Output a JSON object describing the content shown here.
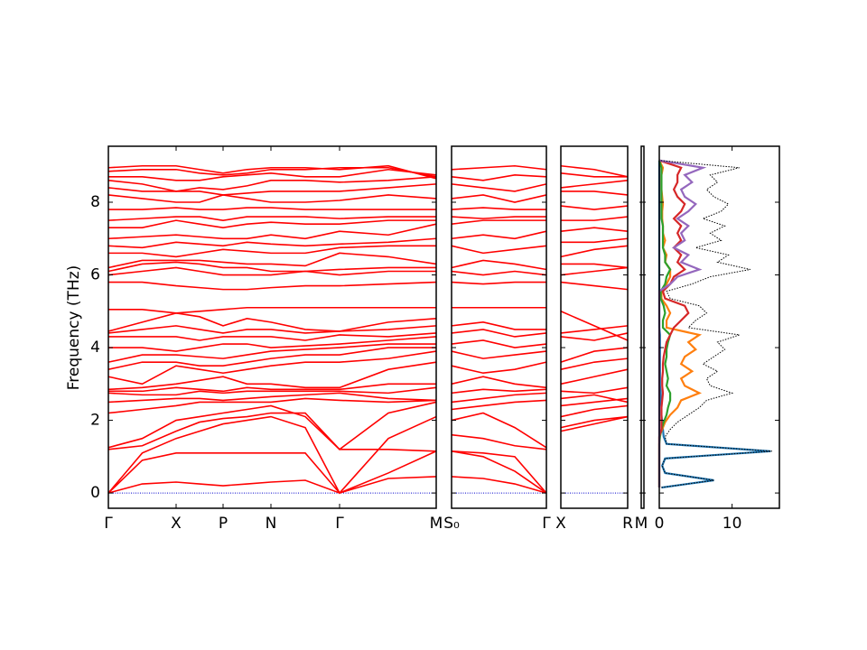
{
  "chart_data": [
    {
      "type": "line",
      "ylabel": "Frequency (THz)",
      "ytick_labels": true,
      "color": "#ff0000",
      "xlim": [
        0,
        3.63
      ],
      "ylim": [
        -0.42,
        9.54
      ],
      "yticks": [
        0,
        2,
        4,
        6,
        8
      ],
      "xticks": [
        {
          "value": 0,
          "label": "Γ"
        },
        {
          "value": 0.75,
          "label": "X"
        },
        {
          "value": 1.27,
          "label": "P"
        },
        {
          "value": 1.8,
          "label": "N"
        },
        {
          "value": 2.56,
          "label": "Γ"
        },
        {
          "value": 3.63,
          "label": "M"
        }
      ],
      "hline": 0,
      "hline_color": "#0000cc",
      "x": [
        0,
        0.375,
        0.75,
        1.01,
        1.27,
        1.535,
        1.8,
        2.18,
        2.56,
        3.1,
        3.63
      ],
      "bands": [
        [
          0,
          0.25,
          0.3,
          0.25,
          0.2,
          0.25,
          0.3,
          0.35,
          0,
          0.4,
          0.45
        ],
        [
          0,
          0.9,
          1.1,
          1.1,
          1.1,
          1.1,
          1.1,
          1.1,
          0,
          0.55,
          1.15
        ],
        [
          0,
          1.1,
          1.5,
          1.7,
          1.9,
          2.0,
          2.1,
          1.8,
          0,
          1.5,
          2.1
        ],
        [
          1.2,
          1.3,
          1.7,
          1.95,
          2.05,
          2.1,
          2.2,
          2.2,
          1.2,
          1.2,
          1.15
        ],
        [
          1.25,
          1.5,
          2.0,
          2.1,
          2.2,
          2.3,
          2.4,
          2.1,
          1.2,
          2.2,
          2.5
        ],
        [
          2.2,
          2.3,
          2.4,
          2.5,
          2.5,
          2.5,
          2.5,
          2.6,
          2.55,
          2.5,
          2.55
        ],
        [
          2.5,
          2.55,
          2.6,
          2.6,
          2.55,
          2.6,
          2.65,
          2.7,
          2.75,
          2.6,
          2.55
        ],
        [
          2.75,
          2.7,
          2.7,
          2.8,
          2.75,
          2.8,
          2.8,
          2.8,
          2.8,
          2.75,
          2.9
        ],
        [
          2.8,
          2.8,
          2.9,
          2.85,
          2.8,
          2.9,
          2.85,
          2.85,
          2.85,
          3.0,
          3.0
        ],
        [
          2.85,
          2.9,
          3.0,
          3.1,
          3.2,
          3.0,
          3.0,
          2.9,
          2.9,
          3.4,
          3.6
        ],
        [
          3.2,
          3.0,
          3.5,
          3.4,
          3.3,
          3.4,
          3.5,
          3.6,
          3.6,
          3.7,
          3.9
        ],
        [
          3.4,
          3.6,
          3.6,
          3.5,
          3.5,
          3.6,
          3.7,
          3.8,
          3.8,
          4.0,
          4.0
        ],
        [
          3.6,
          3.8,
          3.8,
          3.75,
          3.7,
          3.8,
          3.9,
          3.95,
          4.0,
          4.1,
          4.1
        ],
        [
          4.0,
          4.0,
          3.9,
          4.0,
          4.1,
          4.1,
          4.0,
          4.05,
          4.1,
          4.2,
          4.3
        ],
        [
          4.3,
          4.3,
          4.3,
          4.2,
          4.3,
          4.3,
          4.3,
          4.2,
          4.35,
          4.3,
          4.4
        ],
        [
          4.4,
          4.5,
          4.6,
          4.5,
          4.4,
          4.5,
          4.5,
          4.4,
          4.45,
          4.5,
          4.6
        ],
        [
          4.45,
          4.7,
          4.95,
          4.85,
          4.6,
          4.8,
          4.7,
          4.5,
          4.45,
          4.7,
          4.8
        ],
        [
          5.05,
          5.05,
          4.95,
          5.0,
          5.05,
          5.1,
          5.1,
          5.1,
          5.1,
          5.1,
          5.1
        ],
        [
          5.8,
          5.8,
          5.7,
          5.65,
          5.6,
          5.6,
          5.65,
          5.7,
          5.7,
          5.75,
          5.8
        ],
        [
          6.0,
          6.1,
          6.2,
          6.1,
          6.0,
          6.0,
          6.0,
          6.1,
          6.0,
          6.1,
          6.1
        ],
        [
          6.1,
          6.3,
          6.35,
          6.3,
          6.2,
          6.2,
          6.1,
          6.1,
          6.15,
          6.2,
          6.2
        ],
        [
          6.2,
          6.4,
          6.4,
          6.4,
          6.35,
          6.3,
          6.3,
          6.25,
          6.6,
          6.5,
          6.3
        ],
        [
          6.6,
          6.6,
          6.5,
          6.6,
          6.7,
          6.65,
          6.6,
          6.6,
          6.75,
          6.8,
          6.8
        ],
        [
          6.8,
          6.75,
          6.9,
          6.85,
          6.8,
          6.9,
          6.85,
          6.8,
          6.85,
          6.9,
          7.0
        ],
        [
          7.0,
          7.05,
          7.1,
          7.05,
          7.0,
          7.0,
          7.1,
          7.0,
          7.2,
          7.1,
          7.4
        ],
        [
          7.3,
          7.3,
          7.5,
          7.4,
          7.3,
          7.4,
          7.45,
          7.4,
          7.4,
          7.5,
          7.5
        ],
        [
          7.5,
          7.55,
          7.6,
          7.6,
          7.5,
          7.6,
          7.6,
          7.6,
          7.55,
          7.6,
          7.6
        ],
        [
          7.8,
          7.8,
          7.85,
          7.8,
          7.8,
          7.85,
          7.85,
          7.8,
          7.8,
          7.8,
          7.8
        ],
        [
          8.2,
          8.1,
          8.0,
          8.0,
          8.2,
          8.1,
          8.0,
          8.0,
          8.05,
          8.2,
          8.1
        ],
        [
          8.4,
          8.3,
          8.3,
          8.3,
          8.2,
          8.25,
          8.3,
          8.3,
          8.3,
          8.4,
          8.5
        ],
        [
          8.6,
          8.5,
          8.3,
          8.4,
          8.35,
          8.45,
          8.6,
          8.6,
          8.55,
          8.6,
          8.7
        ],
        [
          8.7,
          8.7,
          8.6,
          8.6,
          8.7,
          8.75,
          8.8,
          8.7,
          8.7,
          8.9,
          8.75
        ],
        [
          8.85,
          8.9,
          8.9,
          8.8,
          8.75,
          8.8,
          8.9,
          8.9,
          8.95,
          8.95,
          8.7
        ],
        [
          8.95,
          9.0,
          9.0,
          8.9,
          8.8,
          8.9,
          8.95,
          8.95,
          8.9,
          9.0,
          8.65
        ]
      ]
    },
    {
      "type": "line",
      "ytick_labels": false,
      "color": "#ff0000",
      "xlim": [
        0,
        1.05
      ],
      "ylim": [
        -0.42,
        9.54
      ],
      "yticks": [
        0,
        2,
        4,
        6,
        8
      ],
      "xticks": [
        {
          "value": 0,
          "label": "S₀"
        },
        {
          "value": 1.05,
          "label": "Γ"
        }
      ],
      "hline": 0,
      "hline_color": "#0000cc",
      "x": [
        0,
        0.35,
        0.7,
        1.05
      ],
      "bands": [
        [
          0.45,
          0.4,
          0.25,
          0
        ],
        [
          1.15,
          1.0,
          0.6,
          0
        ],
        [
          1.15,
          1.1,
          1.0,
          0
        ],
        [
          1.6,
          1.5,
          1.3,
          1.2
        ],
        [
          2.0,
          2.2,
          1.8,
          1.25
        ],
        [
          2.3,
          2.4,
          2.5,
          2.55
        ],
        [
          2.5,
          2.6,
          2.7,
          2.75
        ],
        [
          2.75,
          2.85,
          2.8,
          2.85
        ],
        [
          3.0,
          3.2,
          3.0,
          2.9
        ],
        [
          3.5,
          3.3,
          3.4,
          3.6
        ],
        [
          3.9,
          3.7,
          3.8,
          3.9
        ],
        [
          4.1,
          4.2,
          4.0,
          4.1
        ],
        [
          4.4,
          4.5,
          4.3,
          4.4
        ],
        [
          4.6,
          4.7,
          4.5,
          4.5
        ],
        [
          5.1,
          5.1,
          5.1,
          5.1
        ],
        [
          5.8,
          5.75,
          5.8,
          5.8
        ],
        [
          6.1,
          6.0,
          6.1,
          6.0
        ],
        [
          6.2,
          6.4,
          6.3,
          6.15
        ],
        [
          6.8,
          6.6,
          6.7,
          6.8
        ],
        [
          7.0,
          7.1,
          7.0,
          7.2
        ],
        [
          7.4,
          7.5,
          7.5,
          7.5
        ],
        [
          7.6,
          7.55,
          7.6,
          7.6
        ],
        [
          7.8,
          7.85,
          7.8,
          7.8
        ],
        [
          8.1,
          8.2,
          8.0,
          8.2
        ],
        [
          8.5,
          8.4,
          8.3,
          8.5
        ],
        [
          8.7,
          8.6,
          8.75,
          8.7
        ],
        [
          8.9,
          8.95,
          9.0,
          8.9
        ]
      ]
    },
    {
      "type": "line",
      "ytick_labels": false,
      "color": "#ff0000",
      "xlim": [
        0,
        0.74
      ],
      "ylim": [
        -0.42,
        9.54
      ],
      "yticks": [
        0,
        2,
        4,
        6,
        8
      ],
      "xticks": [
        {
          "value": 0,
          "label": "X"
        },
        {
          "value": 0.74,
          "label": "R"
        }
      ],
      "hline": 0,
      "hline_color": "#0000cc",
      "x": [
        0,
        0.37,
        0.74
      ],
      "bands": [
        [
          1.7,
          1.9,
          2.1
        ],
        [
          1.8,
          2.0,
          2.1
        ],
        [
          2.1,
          2.3,
          2.4
        ],
        [
          2.4,
          2.5,
          2.6
        ],
        [
          2.6,
          2.7,
          2.5
        ],
        [
          2.8,
          2.75,
          2.9
        ],
        [
          3.0,
          3.2,
          3.4
        ],
        [
          3.4,
          3.6,
          3.7
        ],
        [
          3.6,
          3.9,
          4.0
        ],
        [
          4.3,
          4.2,
          4.4
        ],
        [
          4.4,
          4.5,
          4.6
        ],
        [
          5.0,
          4.6,
          4.2
        ],
        [
          5.8,
          5.7,
          5.6
        ],
        [
          6.0,
          6.1,
          6.2
        ],
        [
          6.3,
          6.3,
          6.2
        ],
        [
          6.5,
          6.7,
          6.8
        ],
        [
          6.9,
          6.9,
          7.0
        ],
        [
          7.2,
          7.3,
          7.2
        ],
        [
          7.5,
          7.5,
          7.6
        ],
        [
          7.9,
          7.8,
          7.9
        ],
        [
          8.3,
          8.3,
          8.2
        ],
        [
          8.4,
          8.5,
          8.6
        ],
        [
          8.8,
          8.7,
          8.7
        ],
        [
          9.0,
          8.9,
          8.7
        ]
      ]
    },
    {
      "type": "line",
      "ytick_labels": false,
      "xlim": [
        0,
        0.03
      ],
      "ylim": [
        -0.42,
        9.54
      ],
      "yticks": [
        0,
        2,
        4,
        6,
        8
      ],
      "xticks": [
        {
          "value": 0,
          "label": "M"
        }
      ]
    },
    {
      "type": "dos",
      "ytick_labels": false,
      "orientation": "horizontal",
      "xlim": [
        0,
        16.5
      ],
      "ylim": [
        -0.42,
        9.54
      ],
      "xticks": [
        0,
        10
      ],
      "yticks": [
        0,
        2,
        4,
        6,
        8
      ],
      "frequencies": [
        0.15,
        0.35,
        0.55,
        0.75,
        0.95,
        1.15,
        1.35,
        1.55,
        1.75,
        1.95,
        2.15,
        2.35,
        2.55,
        2.75,
        2.95,
        3.15,
        3.35,
        3.55,
        3.75,
        3.95,
        4.15,
        4.35,
        4.55,
        4.75,
        4.95,
        5.15,
        5.35,
        5.55,
        5.75,
        5.95,
        6.15,
        6.35,
        6.55,
        6.75,
        6.95,
        7.15,
        7.35,
        7.55,
        7.75,
        7.95,
        8.15,
        8.35,
        8.55,
        8.75,
        8.95,
        9.15
      ],
      "series": [
        {
          "color": "#1f77b4",
          "style": "solid",
          "values": [
            0.3,
            7.5,
            0.8,
            0.4,
            0.8,
            15.3,
            1.0,
            0.6,
            0.5,
            0.4,
            0.3,
            0.3,
            0.2,
            0.2,
            0.1,
            0.1,
            0.1,
            0.1,
            0.1,
            0.1,
            0.1,
            0.1,
            0,
            0,
            0,
            0,
            0,
            0,
            0,
            0,
            0,
            0,
            0,
            0,
            0,
            0,
            0,
            0,
            0,
            0,
            0,
            0,
            0,
            0,
            0,
            0
          ]
        },
        {
          "color": "#ff7f0e",
          "style": "solid",
          "values": [
            0,
            0,
            0,
            0,
            0,
            0,
            0,
            0,
            0.4,
            0.8,
            1.5,
            2.5,
            3.0,
            5.5,
            3.5,
            3.0,
            4.5,
            3.0,
            3.5,
            5.0,
            4.0,
            5.5,
            1.0,
            1.0,
            1.5,
            1.0,
            0.3,
            0.3,
            1.0,
            1.5,
            1.5,
            0.8,
            1.0,
            0.5,
            0.8,
            0.5,
            0.5,
            0.4,
            0.4,
            0.5,
            0.4,
            0.3,
            0.3,
            0.3,
            0.5,
            0
          ]
        },
        {
          "color": "#2ca02c",
          "style": "solid",
          "values": [
            0,
            0,
            0,
            0,
            0,
            0,
            0,
            0.1,
            0.3,
            0.6,
            1.0,
            1.2,
            1.5,
            1.5,
            1.0,
            1.2,
            1.0,
            0.8,
            1.0,
            1.0,
            1.2,
            1.5,
            0.5,
            0.5,
            0.8,
            0.6,
            0.2,
            0.2,
            0.8,
            1.0,
            1.5,
            0.8,
            0.8,
            0.5,
            0.5,
            0.5,
            0.5,
            0.3,
            0.3,
            0.3,
            0.3,
            0.3,
            0.3,
            0.3,
            0.3,
            0
          ]
        },
        {
          "color": "#d62728",
          "style": "solid",
          "values": [
            0,
            0,
            0,
            0,
            0,
            0,
            0,
            0,
            0.3,
            0.3,
            0.3,
            0.3,
            0.4,
            0.5,
            0.4,
            0.4,
            0.5,
            0.5,
            0.6,
            0.8,
            1.0,
            1.5,
            2.0,
            3.0,
            4.0,
            3.5,
            0.8,
            0.5,
            1.5,
            2.0,
            3.5,
            2.5,
            3.0,
            2.0,
            3.0,
            2.5,
            3.0,
            2.0,
            3.0,
            3.5,
            2.5,
            2.0,
            2.5,
            2.5,
            3.0,
            0
          ]
        },
        {
          "color": "#9467bd",
          "style": "solid",
          "values": [
            0,
            0,
            0,
            0,
            0,
            0,
            0,
            0,
            0,
            0,
            0,
            0,
            0,
            0,
            0,
            0,
            0,
            0,
            0,
            0,
            0,
            0,
            0,
            0,
            0,
            0,
            0,
            0,
            1.5,
            2.5,
            5.5,
            3.0,
            4.0,
            2.0,
            3.5,
            3.0,
            4.0,
            2.5,
            4.0,
            5.0,
            3.5,
            3.0,
            4.5,
            3.5,
            6.0,
            0
          ]
        },
        {
          "color": "#000000",
          "style": "dotted",
          "values": [
            0.3,
            7.5,
            0.8,
            0.4,
            0.8,
            15.5,
            1.0,
            0.8,
            1.5,
            2.5,
            4.0,
            5.5,
            6.5,
            10.0,
            7.0,
            6.5,
            8.0,
            6.0,
            7.5,
            9.0,
            8.0,
            11.0,
            4.0,
            5.0,
            6.5,
            5.5,
            1.5,
            1.0,
            4.5,
            7.0,
            12.5,
            8.0,
            9.5,
            5.0,
            8.5,
            7.0,
            9.0,
            6.0,
            8.5,
            9.5,
            7.5,
            6.5,
            8.0,
            7.0,
            11.0,
            0.0
          ]
        }
      ]
    }
  ]
}
